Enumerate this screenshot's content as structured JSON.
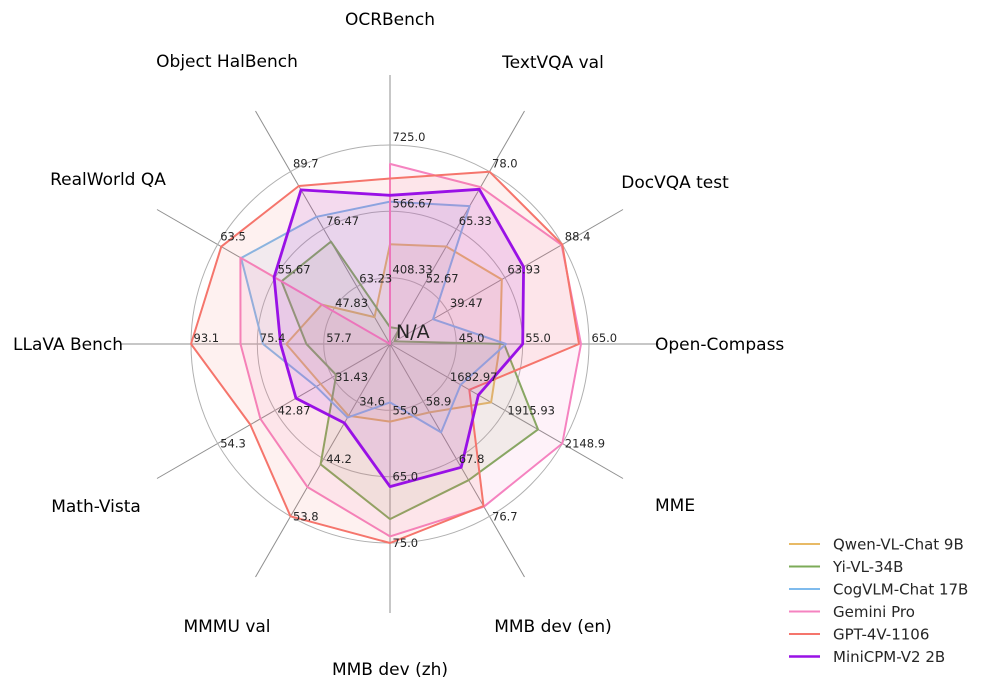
{
  "chart_data": {
    "type": "radar",
    "grid": true,
    "rings": 3,
    "legend_position": "lower right",
    "background": "#ffffff",
    "grid_color": "#b0b0b0",
    "spoke_color": "#8f8f8f",
    "na_annotation": {
      "text": "N/A",
      "series": "Gemini Pro",
      "axis": "Object HalBench"
    },
    "axes": [
      {
        "label": "OCRBench",
        "min": 250,
        "max": 725,
        "ticks": [
          "408.33",
          "566.67",
          "725.0"
        ]
      },
      {
        "label": "TextVQA val",
        "min": 40,
        "max": 78.0,
        "ticks": [
          "52.67",
          "65.33",
          "78.0"
        ]
      },
      {
        "label": "DocVQA test",
        "min": 15,
        "max": 88.4,
        "ticks": [
          "39.47",
          "63.93",
          "88.4"
        ]
      },
      {
        "label": "Open-Compass",
        "min": 35,
        "max": 65.0,
        "ticks": [
          "45.0",
          "55.0",
          "65.0"
        ]
      },
      {
        "label": "MME",
        "min": 1450,
        "max": 2148.9,
        "ticks": [
          "1682.97",
          "1915.93",
          "2148.9"
        ]
      },
      {
        "label": "MMB dev (en)",
        "min": 50,
        "max": 76.7,
        "ticks": [
          "58.9",
          "67.8",
          "76.7"
        ]
      },
      {
        "label": "MMB dev (zh)",
        "min": 45,
        "max": 75.0,
        "ticks": [
          "55.0",
          "65.0",
          "75.0"
        ]
      },
      {
        "label": "MMMU val",
        "min": 25,
        "max": 53.8,
        "ticks": [
          "34.6",
          "44.2",
          "53.8"
        ]
      },
      {
        "label": "Math-Vista",
        "min": 20,
        "max": 54.3,
        "ticks": [
          "31.43",
          "42.87",
          "54.3"
        ]
      },
      {
        "label": "LLaVA Bench",
        "min": 40,
        "max": 93.1,
        "ticks": [
          "57.7",
          "75.4",
          "93.1"
        ]
      },
      {
        "label": "RealWorld QA",
        "min": 40,
        "max": 63.5,
        "ticks": [
          "47.83",
          "55.67",
          "63.5"
        ]
      },
      {
        "label": "Object HalBench",
        "min": 50,
        "max": 89.7,
        "ticks": [
          "63.23",
          "76.47",
          "89.7"
        ]
      }
    ],
    "series": [
      {
        "name": "Qwen-VL-Chat 9B",
        "color": "#e8ba66",
        "emphasis": false,
        "values": [
          488,
          61.5,
          62.6,
          51.6,
          1860.0,
          60.6,
          56.7,
          37.0,
          33.8,
          67.7,
          49.3,
          56.2
        ]
      },
      {
        "name": "Yi-VL-34B",
        "color": "#7cab58",
        "emphasis": false,
        "values": [
          290,
          43.4,
          16.9,
          52.2,
          2050.2,
          71.1,
          71.4,
          45.1,
          30.7,
          62.3,
          54.8,
          73.6
        ]
      },
      {
        "name": "CogVLM-Chat 17B",
        "color": "#7fbbed",
        "emphasis": false,
        "values": [
          590,
          70.4,
          33.3,
          52.5,
          1736.6,
          63.7,
          53.8,
          37.3,
          34.7,
          73.9,
          60.3,
          79.3
        ]
      },
      {
        "name": "Gemini Pro",
        "color": "#f583c0",
        "emphasis": false,
        "values": [
          680,
          74.6,
          88.1,
          63.8,
          2148.9,
          75.2,
          74.0,
          48.9,
          45.8,
          79.9,
          60.4,
          null
        ]
      },
      {
        "name": "GPT-4V-1106",
        "color": "#f5756c",
        "emphasis": false,
        "values": [
          645,
          78.0,
          88.4,
          63.5,
          1771.5,
          75.1,
          75.0,
          53.8,
          47.8,
          93.1,
          63.0,
          86.4
        ]
      },
      {
        "name": "MiniCPM-V2 2B",
        "color": "#9911e6",
        "emphasis": true,
        "values": [
          605,
          74.1,
          71.9,
          55.0,
          1808.6,
          69.1,
          66.5,
          38.2,
          38.7,
          69.2,
          55.8,
          85.5
        ]
      }
    ]
  }
}
